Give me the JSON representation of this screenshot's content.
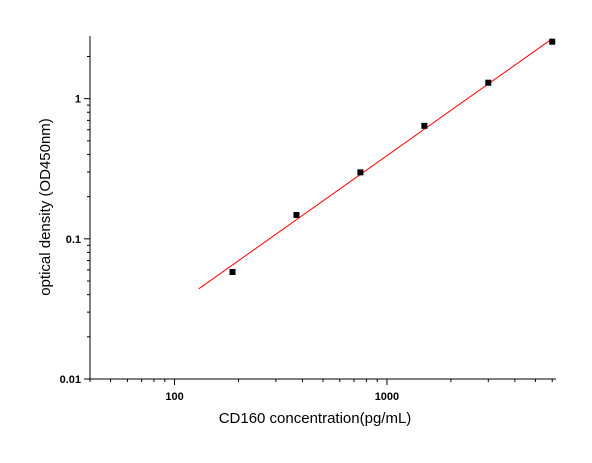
{
  "chart_data": {
    "type": "scatter",
    "xlabel": "CD160  concentration(pg/mL)",
    "ylabel": "optical density (OD450nm)",
    "x_scale": "log",
    "y_scale": "log",
    "xlim": [
      40,
      6250
    ],
    "ylim": [
      0.01,
      2.8
    ],
    "x_tick_labels": [
      "100",
      "1000"
    ],
    "y_tick_labels": [
      "0.01",
      "0.1",
      "1"
    ],
    "grid": false,
    "legend": "none",
    "series": [
      {
        "marker": "square",
        "color": "#000000",
        "x": [
          187.5,
          375,
          750,
          1500,
          3000,
          6000
        ],
        "y": [
          0.058,
          0.148,
          0.298,
          0.64,
          1.3,
          2.55
        ]
      }
    ],
    "fit_line": {
      "color": "#ff0000",
      "x": [
        130,
        6000
      ],
      "y": [
        0.044,
        2.68
      ]
    }
  }
}
